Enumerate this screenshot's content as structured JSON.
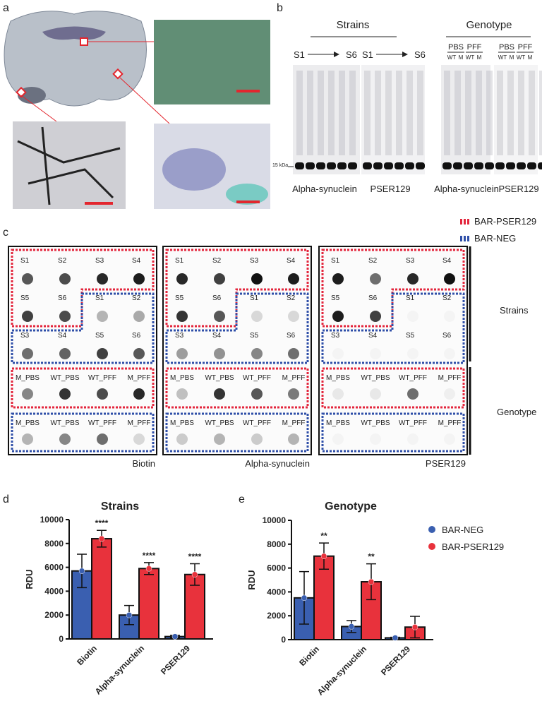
{
  "figure": {
    "panel_letters": [
      "a",
      "b",
      "c",
      "d",
      "e"
    ],
    "b": {
      "group_titles": [
        "Strains",
        "Genotype"
      ],
      "start": "S1",
      "end": "S6",
      "treatments": [
        "PBS",
        "PFF"
      ],
      "genotypes": [
        "WT",
        "M"
      ],
      "marker": "15 kDa",
      "lane_labels": [
        "Alpha-synuclein",
        "PSER129",
        "Alpha-synuclein",
        "PSER129"
      ]
    },
    "c": {
      "legend": [
        "BAR-PSER129",
        "BAR-NEG"
      ],
      "strain_labels": [
        "S1",
        "S2",
        "S3",
        "S4",
        "S5",
        "S6"
      ],
      "genotype_labels": [
        "M_PBS",
        "WT_PBS",
        "WT_PFF",
        "M_PFF"
      ],
      "blot_titles": [
        "Biotin",
        "Alpha-synuclein",
        "PSER129"
      ],
      "row_groups": [
        "Strains",
        "Genotype"
      ]
    }
  },
  "chart_data": [
    {
      "type": "bar",
      "title": "Strains",
      "y_label": "RDU",
      "categories": [
        "Biotin",
        "Alpha-synuclein",
        "PSER129"
      ],
      "series": [
        {
          "color": "#3a5fb0",
          "values": [
            5700,
            2000,
            200
          ],
          "errors": [
            1400,
            800,
            100
          ]
        },
        {
          "color": "#e8323c",
          "values": [
            8400,
            5900,
            5400
          ],
          "errors": [
            700,
            500,
            900
          ]
        }
      ],
      "annotations": [
        "****",
        "****",
        "****"
      ],
      "ylim": [
        0,
        10000
      ],
      "yticks": [
        0,
        2000,
        4000,
        6000,
        8000,
        10000
      ]
    },
    {
      "type": "bar",
      "title": "Genotype",
      "y_label": "RDU",
      "categories": [
        "Biotin",
        "Alpha-synuclein",
        "PSER129"
      ],
      "series": [
        {
          "name": "BAR-NEG",
          "color": "#3a5fb0",
          "values": [
            3500,
            1100,
            150
          ],
          "errors": [
            2200,
            500,
            50
          ]
        },
        {
          "name": "BAR-PSER129",
          "color": "#e8323c",
          "values": [
            7000,
            4850,
            1050
          ],
          "errors": [
            1100,
            1500,
            900
          ]
        }
      ],
      "annotations": [
        "**",
        "**",
        null
      ],
      "ylim": [
        0,
        10000
      ],
      "yticks": [
        0,
        2000,
        4000,
        6000,
        8000,
        10000
      ],
      "legend": "right"
    }
  ]
}
